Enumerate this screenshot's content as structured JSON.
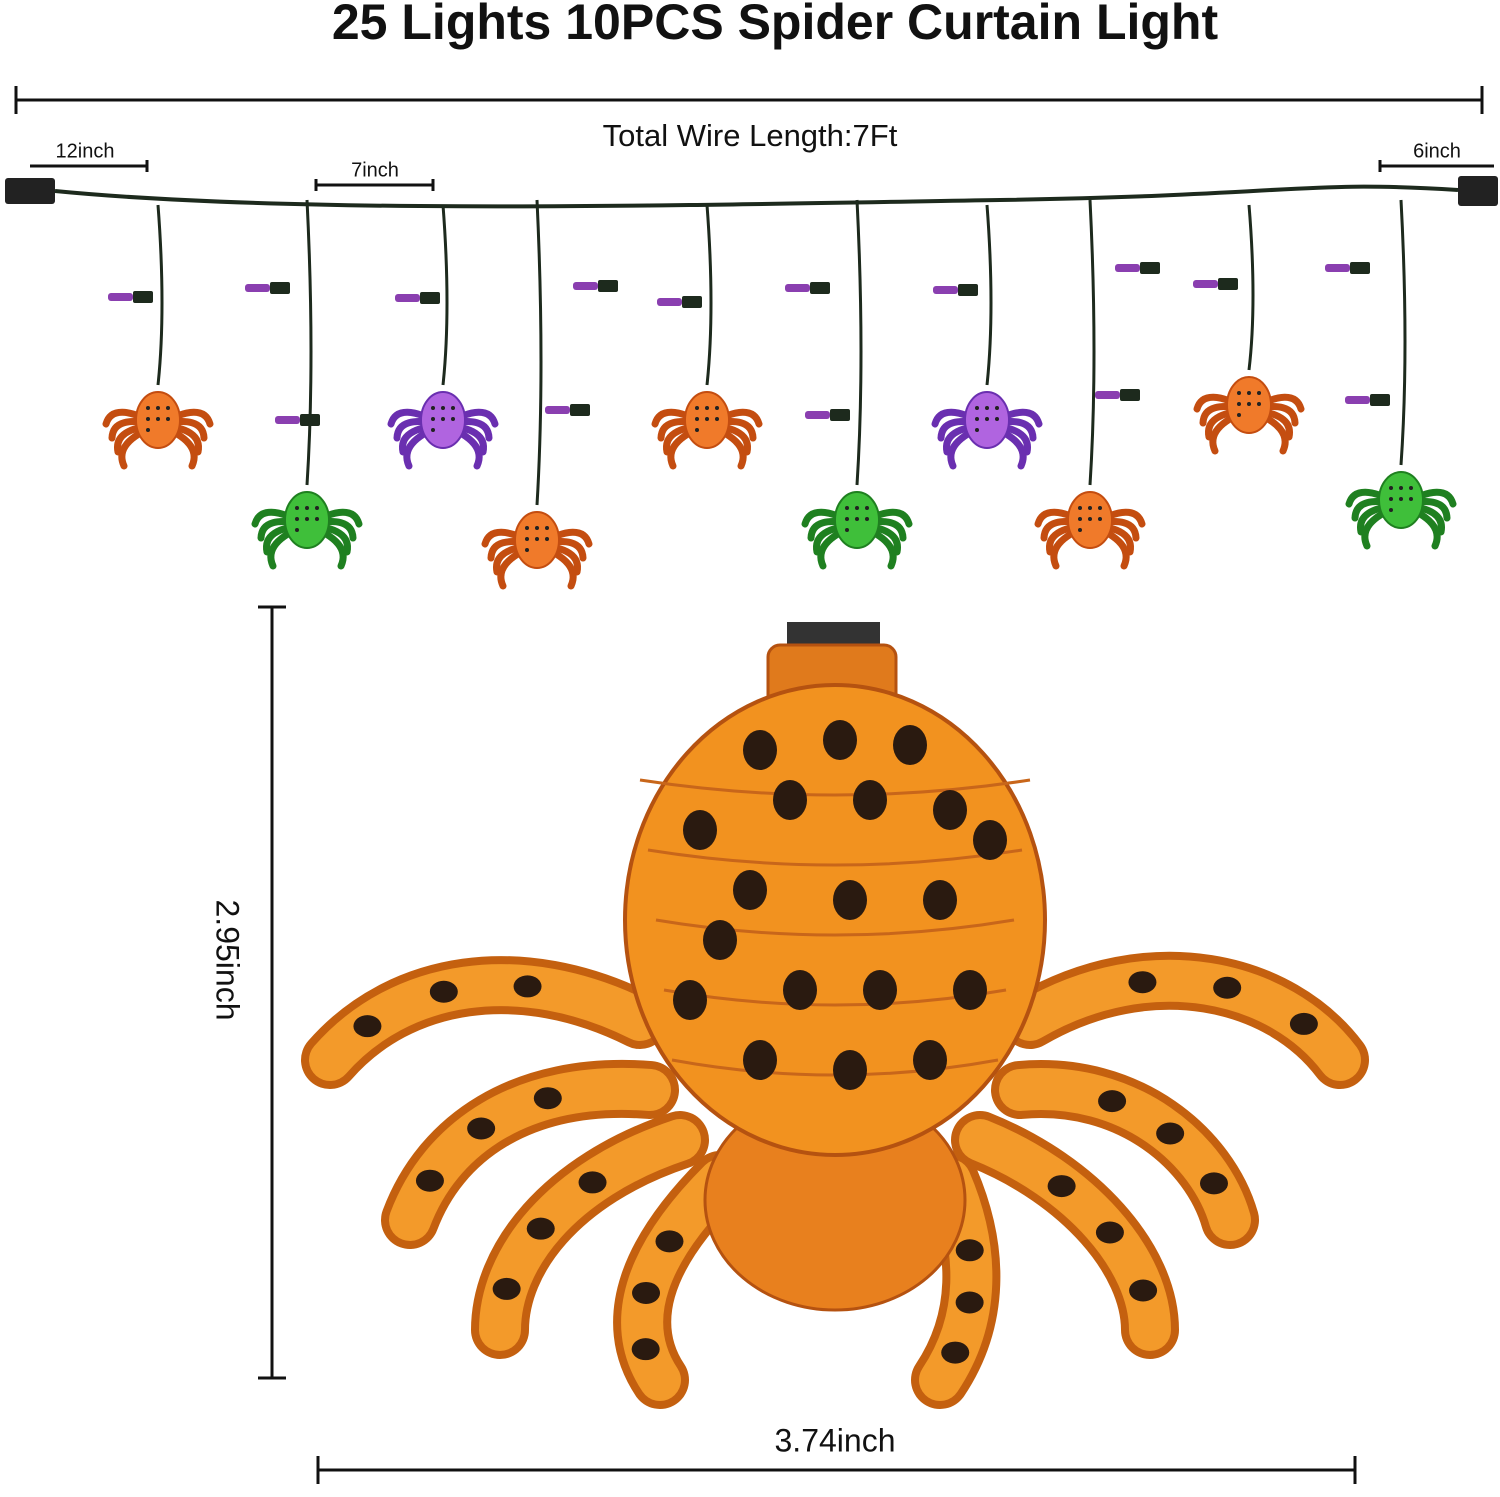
{
  "title": "25 Lights 10PCS Spider Curtain Light",
  "dimensions": {
    "total_wire_length": "Total Wire Length:7Ft",
    "left_lead": "12inch",
    "spacing": "7inch",
    "right_lead": "6inch",
    "height": "2.95inch",
    "width": "3.74inch"
  }
}
